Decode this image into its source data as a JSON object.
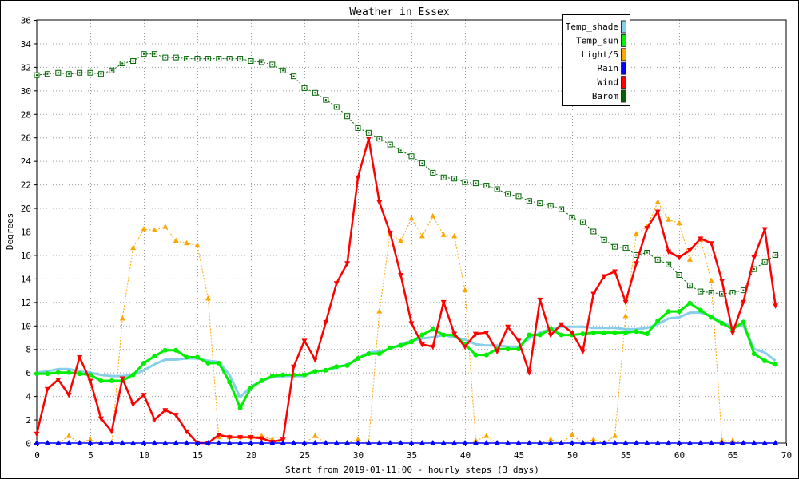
{
  "chart_data": {
    "type": "line",
    "title": "Weather in Essex",
    "xlabel": "Start from 2019-01-11:00 - hourly steps (3 days)",
    "ylabel": "Degrees",
    "xlim": [
      0,
      70
    ],
    "ylim": [
      0,
      36
    ],
    "x_ticks": [
      0,
      5,
      10,
      15,
      20,
      25,
      30,
      35,
      40,
      45,
      50,
      55,
      60,
      65,
      70
    ],
    "y_ticks": [
      0,
      2,
      4,
      6,
      8,
      10,
      12,
      14,
      16,
      18,
      20,
      22,
      24,
      26,
      28,
      30,
      32,
      34,
      36
    ],
    "grid": true,
    "legend_position": "top-right",
    "series": [
      {
        "name": "Temp_shade",
        "color": "#87ceeb",
        "marker": "none",
        "values": [
          6.0,
          6.1,
          6.3,
          6.3,
          6.1,
          6.0,
          5.8,
          5.7,
          5.7,
          5.8,
          6.2,
          6.7,
          7.1,
          7.1,
          7.2,
          7.2,
          7.0,
          6.9,
          5.8,
          3.9,
          4.8,
          5.3,
          5.6,
          5.7,
          5.7,
          5.7,
          6.1,
          6.2,
          6.4,
          6.7,
          7.2,
          7.7,
          7.8,
          8.0,
          8.4,
          8.7,
          8.9,
          9.0,
          9.2,
          9.0,
          8.8,
          8.4,
          8.3,
          8.3,
          8.2,
          8.2,
          8.9,
          9.4,
          9.7,
          9.9,
          9.9,
          9.9,
          9.8,
          9.8,
          9.8,
          9.7,
          9.7,
          9.8,
          10.1,
          10.6,
          10.7,
          11.1,
          11.1,
          10.8,
          10.3,
          9.9,
          10.0,
          8.0,
          7.7,
          7.0
        ]
      },
      {
        "name": "Temp_sun",
        "color": "#00ee00",
        "marker": "circle",
        "values": [
          5.9,
          5.9,
          6.0,
          6.0,
          5.9,
          5.8,
          5.3,
          5.3,
          5.3,
          5.8,
          6.8,
          7.4,
          7.9,
          7.9,
          7.3,
          7.3,
          6.8,
          6.8,
          5.2,
          3.0,
          4.7,
          5.3,
          5.7,
          5.8,
          5.8,
          5.8,
          6.1,
          6.2,
          6.5,
          6.6,
          7.2,
          7.6,
          7.6,
          8.1,
          8.3,
          8.6,
          9.2,
          9.7,
          9.2,
          9.2,
          8.4,
          7.5,
          7.5,
          8.0,
          8.0,
          8.0,
          9.2,
          9.2,
          9.7,
          9.2,
          9.2,
          9.3,
          9.4,
          9.4,
          9.4,
          9.4,
          9.5,
          9.3,
          10.4,
          11.2,
          11.2,
          11.9,
          11.3,
          10.7,
          10.2,
          9.7,
          10.3,
          7.6,
          7.0,
          6.7
        ]
      },
      {
        "name": "Light/5",
        "color": "#ffa500",
        "marker": "triangle-up",
        "values": [
          0,
          0,
          0,
          0.6,
          0,
          0.3,
          0,
          0,
          10.6,
          16.6,
          18.2,
          18.1,
          18.4,
          17.2,
          17.0,
          16.8,
          12.3,
          0.5,
          0.5,
          0.5,
          0.5,
          0.6,
          0.3,
          0,
          0,
          0,
          0.6,
          0,
          0,
          0,
          0.3,
          0,
          11.2,
          17.8,
          17.2,
          19.1,
          17.6,
          19.3,
          17.7,
          17.6,
          13.0,
          0.2,
          0.6,
          0,
          0,
          0,
          0,
          0,
          0.3,
          0,
          0.7,
          0,
          0.3,
          0,
          0.6,
          10.8,
          17.8,
          18.4,
          20.5,
          19.0,
          18.7,
          15.6,
          17.3,
          13.8,
          0.2,
          0.2,
          0,
          0,
          0,
          0
        ]
      },
      {
        "name": "Rain",
        "color": "#0000ff",
        "marker": "triangle-up",
        "values": [
          0,
          0,
          0,
          0,
          0,
          0,
          0,
          0,
          0,
          0,
          0,
          0,
          0,
          0,
          0,
          0,
          0,
          0,
          0,
          0,
          0,
          0,
          0,
          0,
          0,
          0,
          0,
          0,
          0,
          0,
          0,
          0,
          0,
          0,
          0,
          0,
          0,
          0,
          0,
          0,
          0,
          0,
          0,
          0,
          0,
          0,
          0,
          0,
          0,
          0,
          0,
          0,
          0,
          0,
          0,
          0,
          0,
          0,
          0,
          0,
          0,
          0,
          0,
          0,
          0,
          0,
          0,
          0,
          0,
          0
        ]
      },
      {
        "name": "Wind",
        "color": "#ff0000",
        "marker": "triangle-down",
        "values": [
          0.8,
          4.6,
          5.4,
          4.1,
          7.3,
          5.3,
          2.1,
          1.0,
          5.5,
          3.3,
          4.1,
          2.0,
          2.8,
          2.4,
          1.0,
          0,
          0,
          0.7,
          0.5,
          0.5,
          0.5,
          0.4,
          0.1,
          0.3,
          6.5,
          8.7,
          7.1,
          10.3,
          13.6,
          15.3,
          22.6,
          25.9,
          20.5,
          17.9,
          14.3,
          10.2,
          8.4,
          8.2,
          12.0,
          9.3,
          8.2,
          9.3,
          9.4,
          7.8,
          9.9,
          8.7,
          6.0,
          12.2,
          9.2,
          10.1,
          9.4,
          7.8,
          12.7,
          14.2,
          14.6,
          12.0,
          15.3,
          18.3,
          19.7,
          16.3,
          15.8,
          16.4,
          17.4,
          17.0,
          13.8,
          9.4,
          12.0,
          15.8,
          18.2,
          11.7
        ]
      },
      {
        "name": "Barom",
        "color": "#006400",
        "marker": "square",
        "values": [
          31.3,
          31.4,
          31.5,
          31.4,
          31.5,
          31.5,
          31.4,
          31.7,
          32.3,
          32.5,
          33.1,
          33.1,
          32.8,
          32.8,
          32.7,
          32.7,
          32.7,
          32.7,
          32.7,
          32.7,
          32.5,
          32.4,
          32.2,
          31.7,
          31.2,
          30.2,
          29.8,
          29.2,
          28.6,
          27.8,
          26.8,
          26.4,
          25.9,
          25.4,
          24.9,
          24.4,
          23.8,
          23.0,
          22.6,
          22.5,
          22.2,
          22.1,
          21.9,
          21.6,
          21.2,
          21.0,
          20.6,
          20.4,
          20.2,
          19.9,
          19.2,
          18.8,
          18.0,
          17.3,
          16.7,
          16.6,
          16.0,
          16.2,
          15.6,
          15.2,
          14.3,
          13.4,
          12.9,
          12.8,
          12.7,
          12.8,
          13.0,
          14.8,
          15.4,
          16.0
        ]
      }
    ]
  }
}
